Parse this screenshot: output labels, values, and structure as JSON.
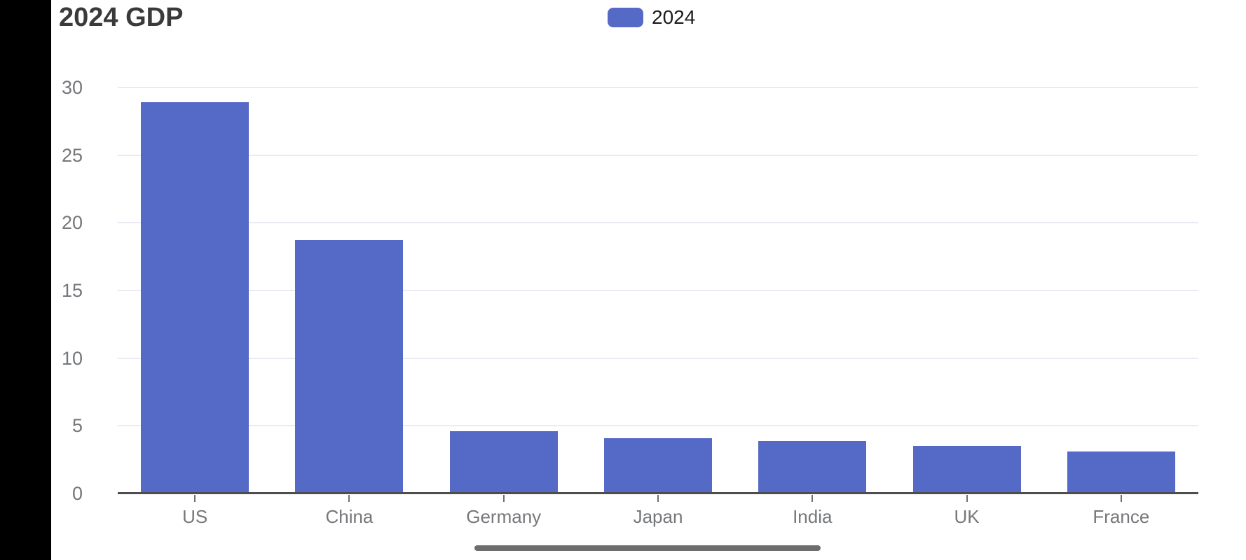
{
  "chart": {
    "title": "2024 GDP"
  },
  "chart_data": {
    "type": "bar",
    "title": "2024 GDP",
    "categories": [
      "US",
      "China",
      "Germany",
      "Japan",
      "India",
      "UK",
      "France"
    ],
    "series": [
      {
        "name": "2024",
        "values": [
          28.9,
          18.7,
          4.6,
          4.1,
          3.9,
          3.5,
          3.1
        ]
      }
    ],
    "xlabel": "",
    "ylabel": "",
    "ylim": [
      0,
      30
    ],
    "yticks": [
      0,
      5,
      10,
      15,
      20,
      25,
      30
    ],
    "grid": true,
    "legend_position": "top-center"
  },
  "theme": {
    "bar_color": "#5569c6",
    "gridline_color": "#e9ebf2",
    "axis_line_color": "#4d4d4d",
    "tick_label_color": "#76777a",
    "title_color": "#3a3a3a",
    "legend_text_color": "#1c1c1c",
    "scrollbar_color": "#6d6d6d",
    "letterbox_color": "#000000"
  },
  "scrollbar": {
    "orientation": "horizontal"
  }
}
